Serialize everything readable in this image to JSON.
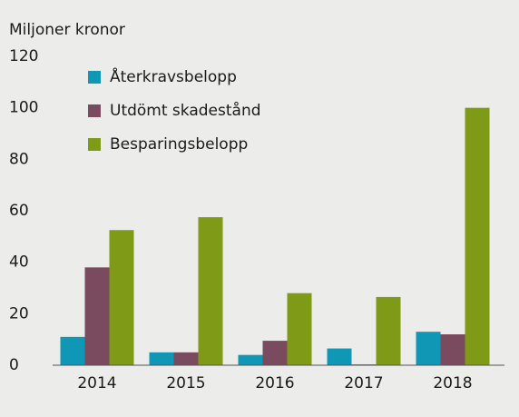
{
  "chart_data": {
    "type": "bar",
    "y_label": "Miljoner kronor",
    "categories": [
      "2014",
      "2015",
      "2016",
      "2017",
      "2018"
    ],
    "series": [
      {
        "name": "Återkravsbelopp",
        "color": "#0f97b5",
        "values": [
          11,
          5,
          4,
          6.5,
          13
        ]
      },
      {
        "name": "Utdömt skadestånd",
        "color": "#7a4a5e",
        "values": [
          38,
          5,
          9.5,
          0.3,
          12
        ]
      },
      {
        "name": "Besparingsbelopp",
        "color": "#7f9a17",
        "values": [
          52.5,
          57.5,
          28,
          26.5,
          100
        ]
      }
    ],
    "ylim": [
      0,
      120
    ],
    "yticks": [
      0,
      20,
      40,
      60,
      80,
      100,
      120
    ],
    "legend": "upper left"
  }
}
